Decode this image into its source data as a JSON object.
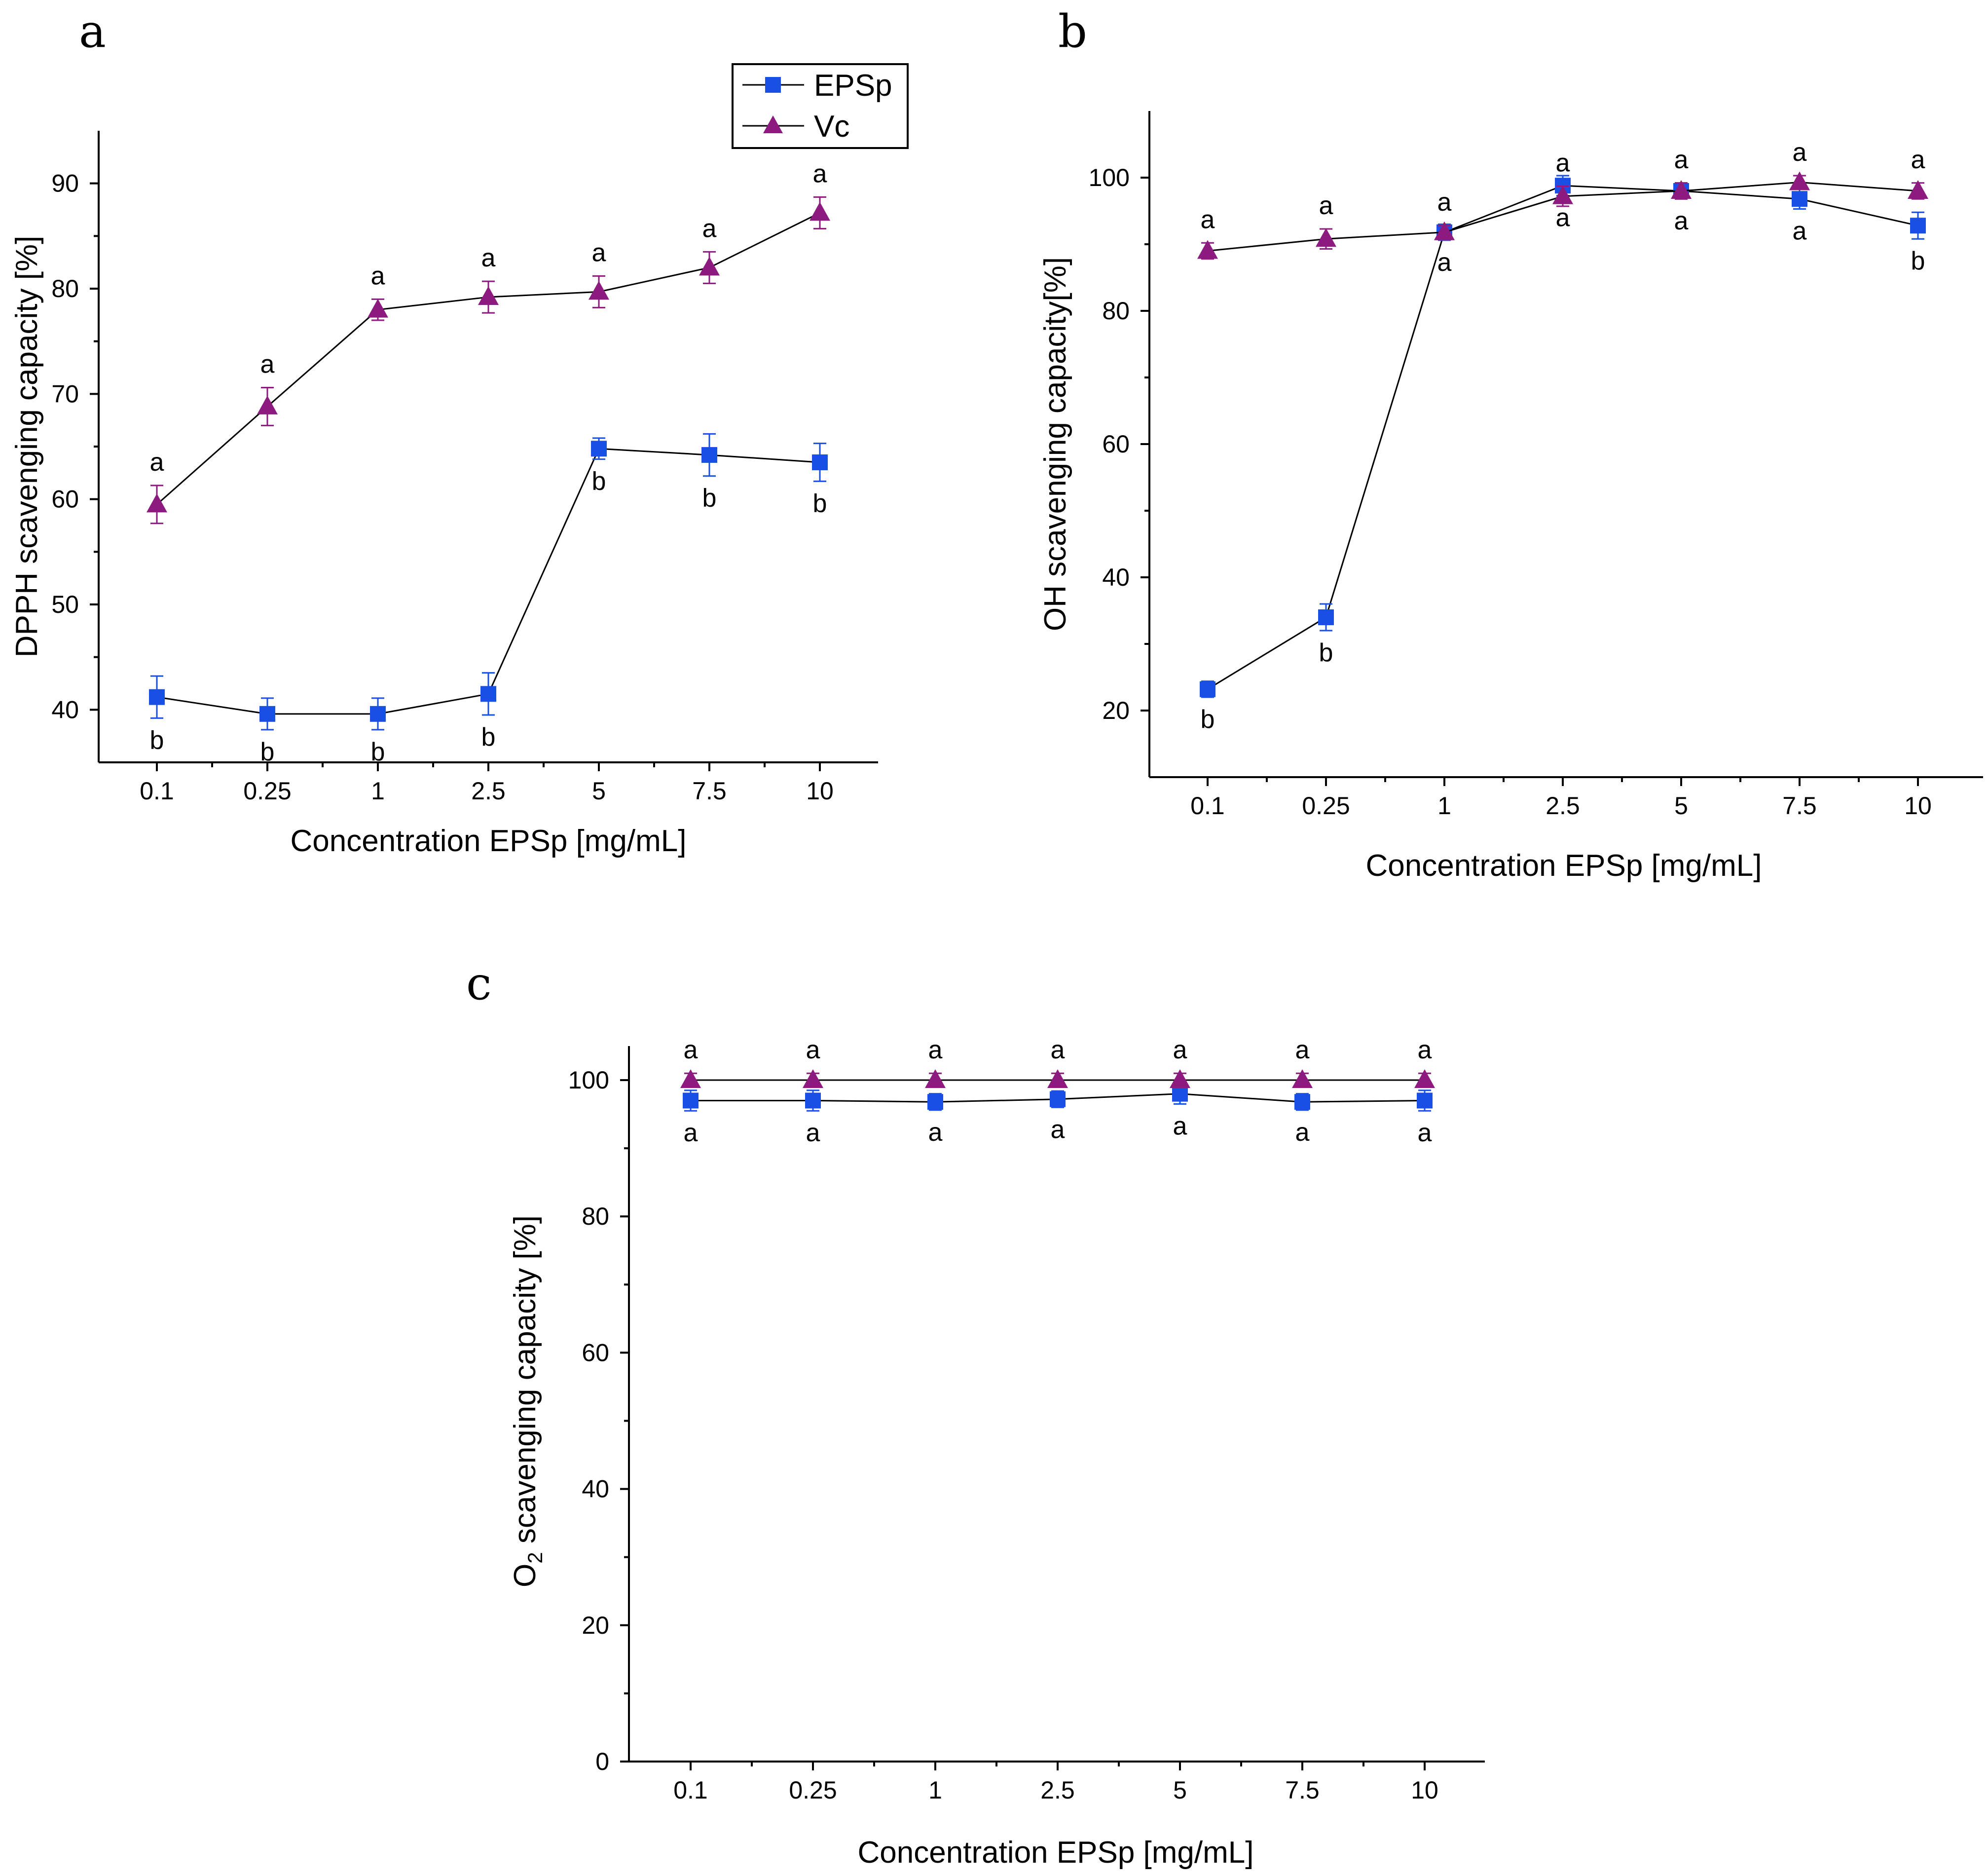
{
  "figure": {
    "legend": {
      "entries": [
        {
          "name": "EPSp",
          "color": "#1a4fe6",
          "marker": "square"
        },
        {
          "name": "Vc",
          "color": "#8c1a7f",
          "marker": "triangle"
        }
      ]
    }
  },
  "chart_data": [
    {
      "panel": "a",
      "type": "line",
      "categories": [
        "0.1",
        "0.25",
        "1",
        "2.5",
        "5",
        "7.5",
        "10"
      ],
      "xlabel": "Concentration EPSp [mg/mL]",
      "ylabel": "DPPH scavenging capacity [%]",
      "ylim": [
        35,
        95
      ],
      "yticks": [
        40,
        50,
        60,
        70,
        80,
        90
      ],
      "series": [
        {
          "name": "EPSp",
          "values": [
            41.2,
            39.6,
            39.6,
            41.5,
            64.8,
            64.2,
            63.5
          ],
          "errors": [
            2.0,
            1.5,
            1.5,
            2.0,
            1.0,
            2.0,
            1.8
          ],
          "letters": [
            "b",
            "b",
            "b",
            "b",
            "b",
            "b",
            "b"
          ],
          "letter_pos": "below"
        },
        {
          "name": "Vc",
          "values": [
            59.5,
            68.8,
            78.0,
            79.2,
            79.7,
            82.0,
            87.2
          ],
          "errors": [
            1.8,
            1.8,
            1.0,
            1.5,
            1.5,
            1.5,
            1.5
          ],
          "letters": [
            "a",
            "a",
            "a",
            "a",
            "a",
            "a",
            "a"
          ],
          "letter_pos": "above"
        }
      ]
    },
    {
      "panel": "b",
      "type": "line",
      "categories": [
        "0.1",
        "0.25",
        "1",
        "2.5",
        "5",
        "7.5",
        "10"
      ],
      "xlabel": "Concentration EPSp [mg/mL]",
      "ylabel": "OH scavenging capacity[%]",
      "ylim": [
        10,
        110
      ],
      "yticks": [
        20,
        40,
        60,
        80,
        100
      ],
      "series": [
        {
          "name": "EPSp",
          "values": [
            23.2,
            34.0,
            91.8,
            98.8,
            98.0,
            96.8,
            92.8
          ],
          "errors": [
            1.2,
            2.0,
            1.2,
            1.5,
            1.2,
            1.5,
            2.0
          ],
          "letters": [
            "b",
            "b",
            "a",
            "a",
            "a",
            "a",
            "b"
          ],
          "letter_pos": "below"
        },
        {
          "name": "Vc",
          "values": [
            89.0,
            90.8,
            91.8,
            97.2,
            98.0,
            99.3,
            98.0
          ],
          "errors": [
            1.2,
            1.5,
            1.0,
            1.5,
            1.2,
            1.0,
            1.2
          ],
          "letters": [
            "a",
            "a",
            "a",
            "a",
            "a",
            "a",
            "a"
          ],
          "letter_pos": "above"
        }
      ]
    },
    {
      "panel": "c",
      "type": "line",
      "categories": [
        "0.1",
        "0.25",
        "1",
        "2.5",
        "5",
        "7.5",
        "10"
      ],
      "xlabel": "Concentration EPSp [mg/mL]",
      "ylabel": "O2 scavenging capacity [%]",
      "ylabel_main": "O",
      "ylabel_sub": "2",
      "ylabel_rest": " scavenging capacity [%]",
      "ylim": [
        0,
        105
      ],
      "yticks": [
        0,
        20,
        40,
        60,
        80,
        100
      ],
      "series": [
        {
          "name": "EPSp",
          "values": [
            97.0,
            97.0,
            96.8,
            97.2,
            98.0,
            96.8,
            97.0
          ],
          "errors": [
            1.5,
            1.5,
            1.2,
            1.2,
            1.5,
            1.2,
            1.5
          ],
          "letters": [
            "a",
            "a",
            "a",
            "a",
            "a",
            "a",
            "a"
          ],
          "letter_pos": "below"
        },
        {
          "name": "Vc",
          "values": [
            100.0,
            100.0,
            100.0,
            100.0,
            100.0,
            100.0,
            100.0
          ],
          "errors": [
            1.0,
            1.0,
            1.0,
            1.0,
            1.0,
            1.0,
            1.0
          ],
          "letters": [
            "a",
            "a",
            "a",
            "a",
            "a",
            "a",
            "a"
          ],
          "letter_pos": "above"
        }
      ]
    }
  ]
}
